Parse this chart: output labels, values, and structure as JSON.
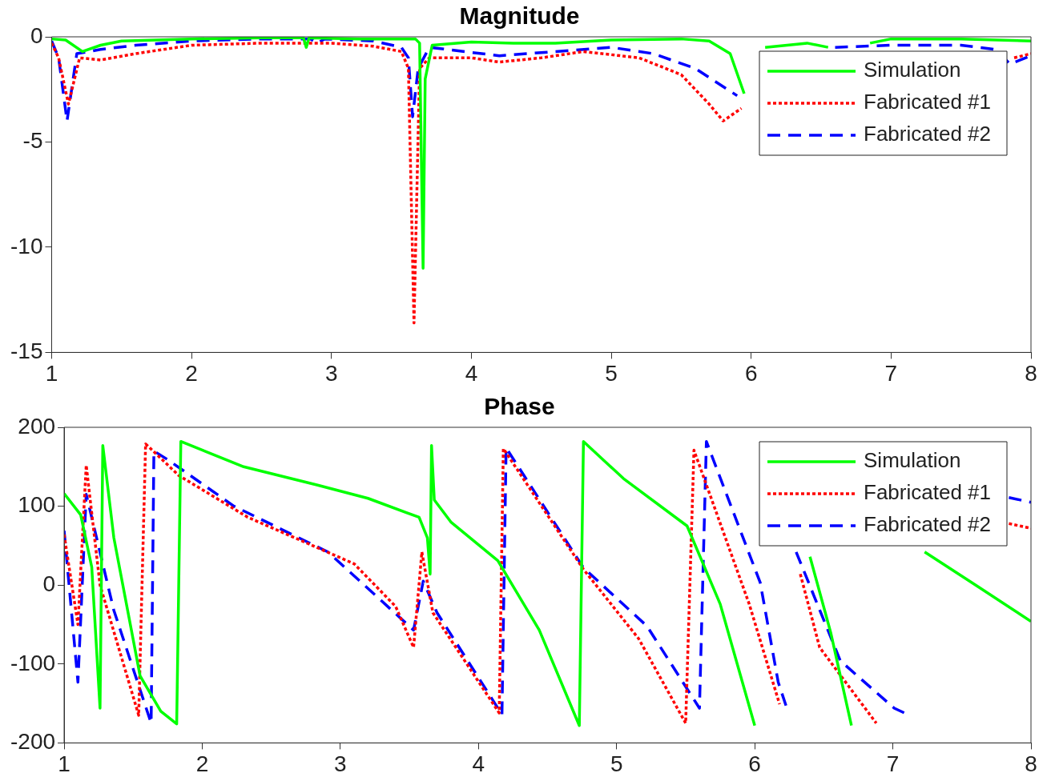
{
  "chart_data": [
    {
      "type": "line",
      "title": "Magnitude",
      "xlim": [
        1,
        8
      ],
      "xticks": [
        1,
        2,
        3,
        4,
        5,
        6,
        7,
        8
      ],
      "ylim": [
        -15,
        0
      ],
      "yticks": [
        -15,
        -10,
        -5,
        0
      ],
      "grid": false,
      "legend": "top right",
      "series": [
        {
          "name": "Simulation",
          "color": "#00ff00",
          "line_style": "solid",
          "x": [
            1,
            1.1,
            1.22,
            1.35,
            1.5,
            2,
            2.5,
            2.8,
            2.82,
            2.84,
            3.2,
            3.6,
            3.63,
            3.655,
            3.67,
            3.72,
            4,
            4.3,
            4.6,
            5,
            5.5,
            5.7,
            5.85,
            5.95,
            6.0,
            6.1,
            6.4,
            6.55,
            6.7,
            6.85,
            7,
            7.5,
            8
          ],
          "values": [
            -0.1,
            -0.15,
            -0.7,
            -0.4,
            -0.2,
            -0.1,
            -0.05,
            -0.05,
            -0.5,
            -0.05,
            -0.1,
            -0.1,
            -0.3,
            -11,
            -2,
            -0.4,
            -0.25,
            -0.3,
            -0.3,
            -0.15,
            -0.1,
            -0.2,
            -0.8,
            -2.7,
            null,
            -0.5,
            -0.3,
            -0.5,
            null,
            -0.3,
            -0.1,
            -0.1,
            -0.2
          ]
        },
        {
          "name": "Fabricated #1",
          "color": "#ff0000",
          "line_style": "dotted",
          "x": [
            1,
            1.05,
            1.12,
            1.2,
            1.35,
            1.6,
            2,
            2.5,
            3,
            3.3,
            3.5,
            3.55,
            3.59,
            3.63,
            3.7,
            4,
            4.2,
            4.5,
            4.8,
            5.2,
            5.5,
            5.7,
            5.8,
            5.93,
            6.2,
            6.6,
            7,
            7.5,
            7.88,
            8
          ],
          "values": [
            -0.3,
            -1.0,
            -3.2,
            -1.0,
            -1.1,
            -0.8,
            -0.4,
            -0.3,
            -0.3,
            -0.45,
            -0.7,
            -1.5,
            -13.6,
            -1.5,
            -1.0,
            -1.0,
            -1.2,
            -1.0,
            -0.7,
            -1.0,
            -1.8,
            -3.2,
            -4.0,
            -3.4,
            null,
            null,
            null,
            null,
            -1.0,
            -0.8
          ]
        },
        {
          "name": "Fabricated #2",
          "color": "#0000ff",
          "line_style": "dashed",
          "x": [
            1,
            1.05,
            1.11,
            1.18,
            1.35,
            1.6,
            2,
            2.5,
            2.85,
            2.9,
            2.95,
            3.3,
            3.5,
            3.55,
            3.58,
            3.62,
            3.7,
            4.2,
            4.6,
            5,
            5.3,
            5.6,
            5.9,
            6.2,
            6.6,
            7,
            7.5,
            7.75,
            7.85,
            8
          ],
          "values": [
            -0.2,
            -1.0,
            -4.0,
            -0.8,
            -0.6,
            -0.4,
            -0.2,
            -0.1,
            -0.1,
            -0.3,
            -0.1,
            -0.2,
            -0.5,
            -1.0,
            -3.8,
            -1.5,
            -0.5,
            -0.9,
            -0.7,
            -0.5,
            -0.8,
            -1.5,
            -2.8,
            null,
            -0.5,
            -0.4,
            -0.4,
            -0.6,
            -1.3,
            -0.9
          ]
        }
      ]
    },
    {
      "type": "line",
      "title": "Phase",
      "xlim": [
        1,
        8
      ],
      "xticks": [
        1,
        2,
        3,
        4,
        5,
        6,
        7,
        8
      ],
      "ylim": [
        -200,
        200
      ],
      "yticks": [
        -200,
        -100,
        0,
        100,
        200
      ],
      "grid": false,
      "legend": "top right",
      "series": [
        {
          "name": "Simulation",
          "color": "#00ff00",
          "line_style": "solid",
          "x": [
            1,
            1.12,
            1.2,
            1.26,
            1.28,
            1.36,
            1.55,
            1.7,
            1.815,
            1.845,
            2.3,
            2.83,
            3.2,
            3.57,
            3.63,
            3.65,
            3.66,
            3.68,
            3.8,
            4.14,
            4.44,
            4.73,
            4.76,
            5.05,
            5.51,
            5.75,
            6.0,
            6.01,
            6.4,
            6.55,
            6.7,
            6.72,
            7.23,
            7.6,
            8
          ],
          "values": [
            116,
            89,
            23,
            -156,
            177,
            60,
            -115,
            -160,
            -176,
            182,
            150,
            127,
            110,
            86,
            60,
            14,
            177,
            108,
            80,
            31,
            -57,
            -178,
            182,
            135,
            75,
            -24,
            -178,
            null,
            36,
            -60,
            -178,
            null,
            42,
            0,
            -46
          ]
        },
        {
          "name": "Fabricated #1",
          "color": "#ff0000",
          "line_style": "dotted",
          "x": [
            1,
            1.1,
            1.16,
            1.26,
            1.54,
            1.59,
            1.83,
            2.33,
            3.1,
            3.4,
            3.53,
            3.59,
            3.67,
            4.15,
            4.18,
            4.76,
            5.16,
            5.5,
            5.56,
            5.96,
            6.18,
            6.2,
            6.33,
            6.47,
            6.88,
            6.95,
            7.3,
            7.84,
            8
          ],
          "values": [
            64,
            -50,
            152,
            0,
            -165,
            179,
            139,
            86,
            27,
            -27,
            -79,
            42,
            -35,
            -162,
            173,
            20,
            -68,
            -175,
            171,
            -24,
            -151,
            null,
            14,
            -79,
            -175,
            null,
            null,
            78,
            72
          ]
        },
        {
          "name": "Fabricated #2",
          "color": "#0000ff",
          "line_style": "dashed",
          "x": [
            1,
            1.1,
            1.16,
            1.36,
            1.63,
            1.65,
            1.75,
            2.23,
            2.91,
            3.53,
            3.6,
            3.7,
            4.17,
            4.2,
            4.76,
            5.22,
            5.6,
            5.65,
            6.04,
            6.17,
            6.24,
            6.26,
            6.3,
            6.62,
            7.01,
            7.12,
            7.14,
            7.5,
            7.84,
            8
          ],
          "values": [
            69,
            -123,
            115,
            -32,
            -175,
            170,
            159,
            100,
            42,
            -57,
            5,
            -35,
            -164,
            174,
            22,
            -52,
            -156,
            182,
            3,
            -123,
            -160,
            null,
            42,
            -96,
            -156,
            -165,
            null,
            null,
            111,
            105
          ]
        }
      ]
    }
  ]
}
